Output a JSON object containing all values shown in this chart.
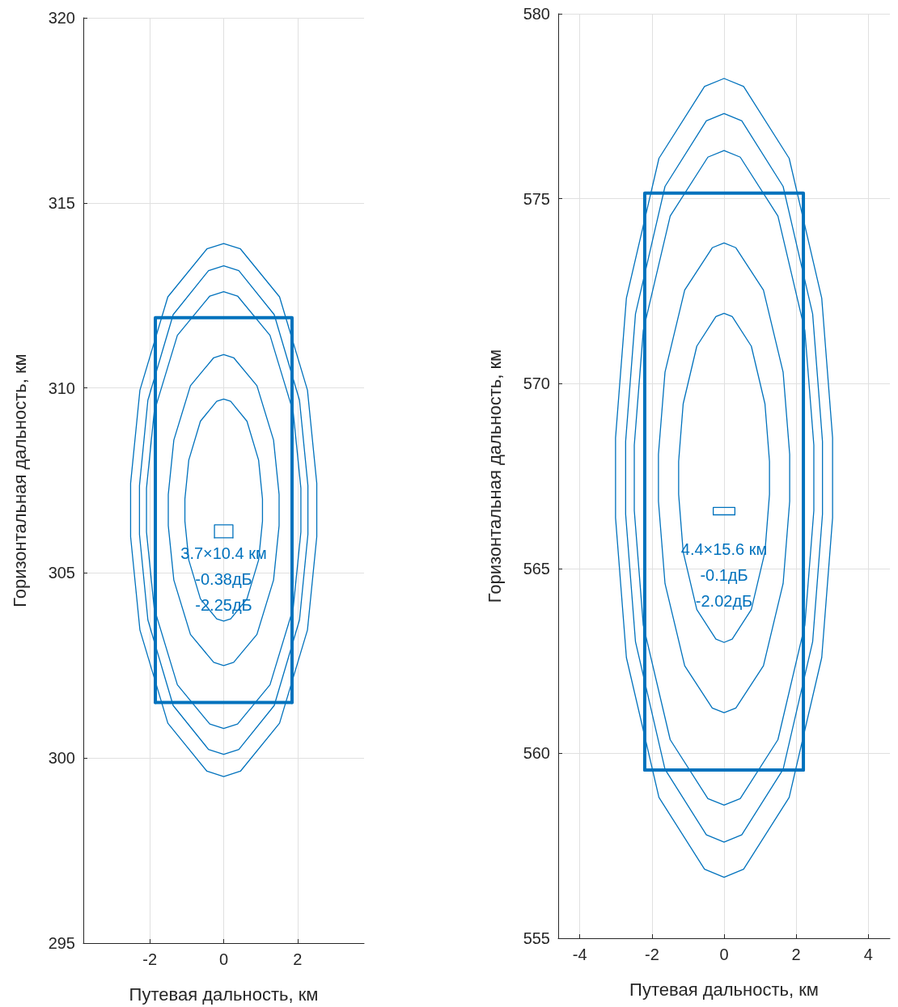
{
  "chart_data": [
    {
      "type": "line",
      "xlabel": "Путевая дальность, км",
      "ylabel": "Горизонтальная дальность, км",
      "xlim": [
        -3.8,
        3.8
      ],
      "xticks": [
        -2,
        0,
        2
      ],
      "ylim": [
        295,
        320
      ],
      "yticks": [
        295,
        300,
        305,
        310,
        315,
        320
      ],
      "grid": true,
      "marker": "none",
      "line_style": "solid",
      "series": [
        {
          "color": "#0072bd",
          "x": [
            -1.85,
            -1.85,
            1.85,
            1.85
          ],
          "values": [
            301.5,
            311.9,
            311.9,
            301.5
          ]
        },
        {
          "color": "#0072bd",
          "x": [
            -1.85,
            1.85
          ],
          "values": [
            301.5,
            301.5
          ]
        },
        {
          "color": "#0072bd",
          "x": [
            -0.25,
            -0.25,
            0.25,
            0.25
          ],
          "values": [
            305.95,
            306.3,
            306.3,
            305.95
          ]
        },
        {
          "color": "#0072bd",
          "x": [
            -0.25,
            0.25
          ],
          "values": [
            305.95,
            305.95
          ]
        }
      ],
      "annotations": [
        "3.7×10.4 км",
        "-0.38дБ",
        "-2.25дБ"
      ]
    },
    {
      "type": "line",
      "xlabel": "Путевая дальность, км",
      "ylabel": "Горизонтальная дальность, км",
      "xlim": [
        -4.6,
        4.6
      ],
      "xticks": [
        -4,
        -2,
        0,
        2,
        4
      ],
      "ylim": [
        555,
        580
      ],
      "yticks": [
        555,
        560,
        565,
        570,
        575,
        580
      ],
      "grid": true,
      "marker": "none",
      "line_style": "solid",
      "series": [
        {
          "color": "#0072bd",
          "x": [
            -2.2,
            -2.2,
            2.2,
            2.2
          ],
          "values": [
            559.55,
            575.15,
            575.15,
            559.55
          ]
        },
        {
          "color": "#0072bd",
          "x": [
            -2.2,
            2.2
          ],
          "values": [
            559.55,
            559.55
          ]
        },
        {
          "color": "#0072bd",
          "x": [
            -0.3,
            -0.3,
            0.3,
            0.3
          ],
          "values": [
            566.45,
            566.65,
            566.65,
            566.45
          ]
        },
        {
          "color": "#0072bd",
          "x": [
            -0.3,
            0.3
          ],
          "values": [
            566.45,
            566.45
          ]
        }
      ],
      "annotations": [
        "4.4×15.6 км",
        "-0.1дБ",
        "-2.02дБ"
      ]
    }
  ]
}
